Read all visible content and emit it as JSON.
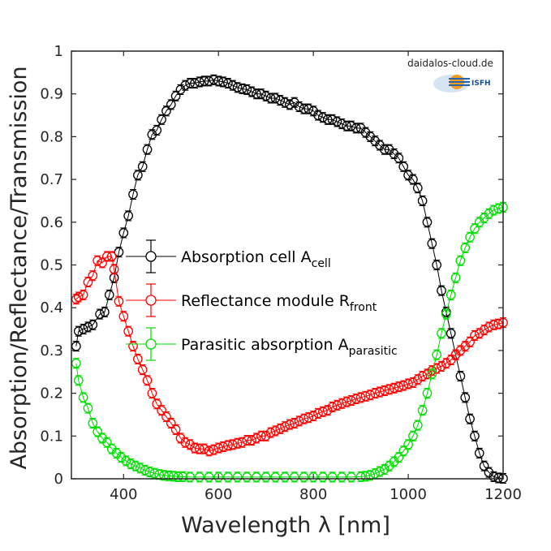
{
  "chart_data": {
    "type": "line",
    "title": "",
    "xlabel": "Wavelength λ [nm]",
    "ylabel": "Absorption/Reflectance/Transmission",
    "xlim": [
      290,
      1200
    ],
    "ylim": [
      0,
      1
    ],
    "xticks": [
      400,
      600,
      800,
      1000,
      1200
    ],
    "yticks": [
      0,
      0.1,
      0.2,
      0.3,
      0.4,
      0.5,
      0.6,
      0.7,
      0.8,
      0.9,
      1
    ],
    "ytick_labels": [
      "0",
      "0.1",
      "0.2",
      "0.3",
      "0.4",
      "0.5",
      "0.6",
      "0.7",
      "0.8",
      "0.9",
      "1"
    ],
    "grid": false,
    "legend_position": "middle-left",
    "series": [
      {
        "legend_main": "Absorption cell A",
        "legend_sub": "cell",
        "color": "#000000",
        "points": [
          [
            300,
            0.31
          ],
          [
            305,
            0.345
          ],
          [
            315,
            0.35
          ],
          [
            325,
            0.355
          ],
          [
            335,
            0.36
          ],
          [
            350,
            0.385
          ],
          [
            360,
            0.39
          ],
          [
            370,
            0.43
          ],
          [
            380,
            0.47
          ],
          [
            390,
            0.53
          ],
          [
            400,
            0.575
          ],
          [
            410,
            0.615
          ],
          [
            420,
            0.665
          ],
          [
            430,
            0.71
          ],
          [
            440,
            0.73
          ],
          [
            450,
            0.77
          ],
          [
            460,
            0.805
          ],
          [
            470,
            0.815
          ],
          [
            480,
            0.84
          ],
          [
            490,
            0.86
          ],
          [
            500,
            0.875
          ],
          [
            510,
            0.895
          ],
          [
            520,
            0.91
          ],
          [
            530,
            0.92
          ],
          [
            540,
            0.925
          ],
          [
            550,
            0.925
          ],
          [
            560,
            0.928
          ],
          [
            570,
            0.93
          ],
          [
            580,
            0.93
          ],
          [
            590,
            0.933
          ],
          [
            600,
            0.93
          ],
          [
            610,
            0.928
          ],
          [
            620,
            0.925
          ],
          [
            630,
            0.92
          ],
          [
            640,
            0.915
          ],
          [
            650,
            0.912
          ],
          [
            660,
            0.91
          ],
          [
            670,
            0.905
          ],
          [
            680,
            0.9
          ],
          [
            690,
            0.9
          ],
          [
            700,
            0.895
          ],
          [
            710,
            0.89
          ],
          [
            720,
            0.89
          ],
          [
            730,
            0.885
          ],
          [
            740,
            0.88
          ],
          [
            750,
            0.875
          ],
          [
            760,
            0.88
          ],
          [
            770,
            0.87
          ],
          [
            780,
            0.865
          ],
          [
            790,
            0.865
          ],
          [
            800,
            0.86
          ],
          [
            810,
            0.85
          ],
          [
            820,
            0.845
          ],
          [
            830,
            0.84
          ],
          [
            840,
            0.84
          ],
          [
            850,
            0.835
          ],
          [
            860,
            0.83
          ],
          [
            870,
            0.825
          ],
          [
            880,
            0.825
          ],
          [
            890,
            0.82
          ],
          [
            900,
            0.82
          ],
          [
            910,
            0.81
          ],
          [
            920,
            0.8
          ],
          [
            930,
            0.79
          ],
          [
            940,
            0.78
          ],
          [
            950,
            0.77
          ],
          [
            960,
            0.77
          ],
          [
            970,
            0.76
          ],
          [
            980,
            0.75
          ],
          [
            990,
            0.73
          ],
          [
            1000,
            0.71
          ],
          [
            1010,
            0.7
          ],
          [
            1020,
            0.68
          ],
          [
            1030,
            0.65
          ],
          [
            1040,
            0.6
          ],
          [
            1050,
            0.55
          ],
          [
            1060,
            0.5
          ],
          [
            1070,
            0.44
          ],
          [
            1080,
            0.39
          ],
          [
            1090,
            0.34
          ],
          [
            1100,
            0.29
          ],
          [
            1110,
            0.24
          ],
          [
            1120,
            0.19
          ],
          [
            1130,
            0.14
          ],
          [
            1140,
            0.1
          ],
          [
            1150,
            0.06
          ],
          [
            1160,
            0.03
          ],
          [
            1170,
            0.015
          ],
          [
            1180,
            0.005
          ],
          [
            1190,
            0.002
          ],
          [
            1200,
            0.001
          ]
        ]
      },
      {
        "legend_main": "Reflectance module R",
        "legend_sub": "front",
        "color": "#ff0000",
        "points": [
          [
            300,
            0.42
          ],
          [
            305,
            0.425
          ],
          [
            315,
            0.43
          ],
          [
            325,
            0.46
          ],
          [
            335,
            0.475
          ],
          [
            345,
            0.51
          ],
          [
            355,
            0.505
          ],
          [
            365,
            0.52
          ],
          [
            375,
            0.52
          ],
          [
            380,
            0.49
          ],
          [
            390,
            0.415
          ],
          [
            400,
            0.38
          ],
          [
            410,
            0.345
          ],
          [
            420,
            0.31
          ],
          [
            430,
            0.28
          ],
          [
            440,
            0.255
          ],
          [
            450,
            0.23
          ],
          [
            460,
            0.2
          ],
          [
            470,
            0.175
          ],
          [
            480,
            0.16
          ],
          [
            490,
            0.145
          ],
          [
            500,
            0.13
          ],
          [
            510,
            0.115
          ],
          [
            520,
            0.095
          ],
          [
            530,
            0.085
          ],
          [
            540,
            0.08
          ],
          [
            550,
            0.072
          ],
          [
            560,
            0.07
          ],
          [
            570,
            0.07
          ],
          [
            580,
            0.065
          ],
          [
            590,
            0.068
          ],
          [
            600,
            0.072
          ],
          [
            610,
            0.075
          ],
          [
            620,
            0.078
          ],
          [
            630,
            0.08
          ],
          [
            640,
            0.083
          ],
          [
            650,
            0.085
          ],
          [
            660,
            0.09
          ],
          [
            670,
            0.09
          ],
          [
            680,
            0.095
          ],
          [
            690,
            0.1
          ],
          [
            700,
            0.1
          ],
          [
            710,
            0.108
          ],
          [
            720,
            0.112
          ],
          [
            730,
            0.117
          ],
          [
            740,
            0.122
          ],
          [
            750,
            0.127
          ],
          [
            760,
            0.13
          ],
          [
            770,
            0.135
          ],
          [
            780,
            0.14
          ],
          [
            790,
            0.143
          ],
          [
            800,
            0.147
          ],
          [
            810,
            0.153
          ],
          [
            820,
            0.157
          ],
          [
            830,
            0.16
          ],
          [
            840,
            0.168
          ],
          [
            850,
            0.172
          ],
          [
            860,
            0.176
          ],
          [
            870,
            0.18
          ],
          [
            880,
            0.183
          ],
          [
            890,
            0.187
          ],
          [
            900,
            0.19
          ],
          [
            910,
            0.193
          ],
          [
            920,
            0.196
          ],
          [
            930,
            0.2
          ],
          [
            940,
            0.203
          ],
          [
            950,
            0.206
          ],
          [
            960,
            0.209
          ],
          [
            970,
            0.212
          ],
          [
            980,
            0.215
          ],
          [
            990,
            0.218
          ],
          [
            1000,
            0.222
          ],
          [
            1010,
            0.225
          ],
          [
            1020,
            0.232
          ],
          [
            1030,
            0.24
          ],
          [
            1040,
            0.245
          ],
          [
            1050,
            0.253
          ],
          [
            1060,
            0.258
          ],
          [
            1070,
            0.263
          ],
          [
            1080,
            0.27
          ],
          [
            1090,
            0.278
          ],
          [
            1100,
            0.29
          ],
          [
            1110,
            0.3
          ],
          [
            1120,
            0.31
          ],
          [
            1130,
            0.32
          ],
          [
            1140,
            0.335
          ],
          [
            1150,
            0.34
          ],
          [
            1160,
            0.348
          ],
          [
            1170,
            0.355
          ],
          [
            1180,
            0.36
          ],
          [
            1190,
            0.362
          ],
          [
            1200,
            0.365
          ]
        ]
      },
      {
        "legend_main": "Parasitic absorption A",
        "legend_sub": "parasitic",
        "color": "#00dd00",
        "points": [
          [
            300,
            0.27
          ],
          [
            305,
            0.23
          ],
          [
            315,
            0.19
          ],
          [
            325,
            0.165
          ],
          [
            335,
            0.13
          ],
          [
            345,
            0.11
          ],
          [
            355,
            0.095
          ],
          [
            365,
            0.085
          ],
          [
            375,
            0.07
          ],
          [
            385,
            0.06
          ],
          [
            395,
            0.05
          ],
          [
            405,
            0.042
          ],
          [
            415,
            0.035
          ],
          [
            425,
            0.03
          ],
          [
            435,
            0.025
          ],
          [
            445,
            0.02
          ],
          [
            455,
            0.016
          ],
          [
            465,
            0.013
          ],
          [
            475,
            0.01
          ],
          [
            485,
            0.008
          ],
          [
            495,
            0.007
          ],
          [
            505,
            0.006
          ],
          [
            515,
            0.005
          ],
          [
            525,
            0.005
          ],
          [
            540,
            0.004
          ],
          [
            560,
            0.004
          ],
          [
            580,
            0.004
          ],
          [
            600,
            0.004
          ],
          [
            620,
            0.004
          ],
          [
            640,
            0.004
          ],
          [
            660,
            0.004
          ],
          [
            680,
            0.004
          ],
          [
            700,
            0.004
          ],
          [
            720,
            0.004
          ],
          [
            740,
            0.004
          ],
          [
            760,
            0.004
          ],
          [
            780,
            0.004
          ],
          [
            800,
            0.004
          ],
          [
            820,
            0.004
          ],
          [
            840,
            0.004
          ],
          [
            860,
            0.004
          ],
          [
            880,
            0.004
          ],
          [
            900,
            0.005
          ],
          [
            910,
            0.006
          ],
          [
            920,
            0.008
          ],
          [
            930,
            0.012
          ],
          [
            940,
            0.017
          ],
          [
            950,
            0.022
          ],
          [
            960,
            0.03
          ],
          [
            970,
            0.04
          ],
          [
            980,
            0.05
          ],
          [
            990,
            0.065
          ],
          [
            1000,
            0.08
          ],
          [
            1010,
            0.1
          ],
          [
            1020,
            0.125
          ],
          [
            1030,
            0.16
          ],
          [
            1040,
            0.2
          ],
          [
            1050,
            0.245
          ],
          [
            1060,
            0.29
          ],
          [
            1070,
            0.34
          ],
          [
            1080,
            0.385
          ],
          [
            1090,
            0.43
          ],
          [
            1100,
            0.47
          ],
          [
            1110,
            0.51
          ],
          [
            1120,
            0.54
          ],
          [
            1130,
            0.565
          ],
          [
            1140,
            0.585
          ],
          [
            1150,
            0.6
          ],
          [
            1160,
            0.61
          ],
          [
            1170,
            0.62
          ],
          [
            1180,
            0.628
          ],
          [
            1190,
            0.632
          ],
          [
            1200,
            0.635
          ]
        ]
      }
    ]
  },
  "watermark": {
    "site": "daidalos-cloud.de",
    "logo_text": "ISFH"
  }
}
